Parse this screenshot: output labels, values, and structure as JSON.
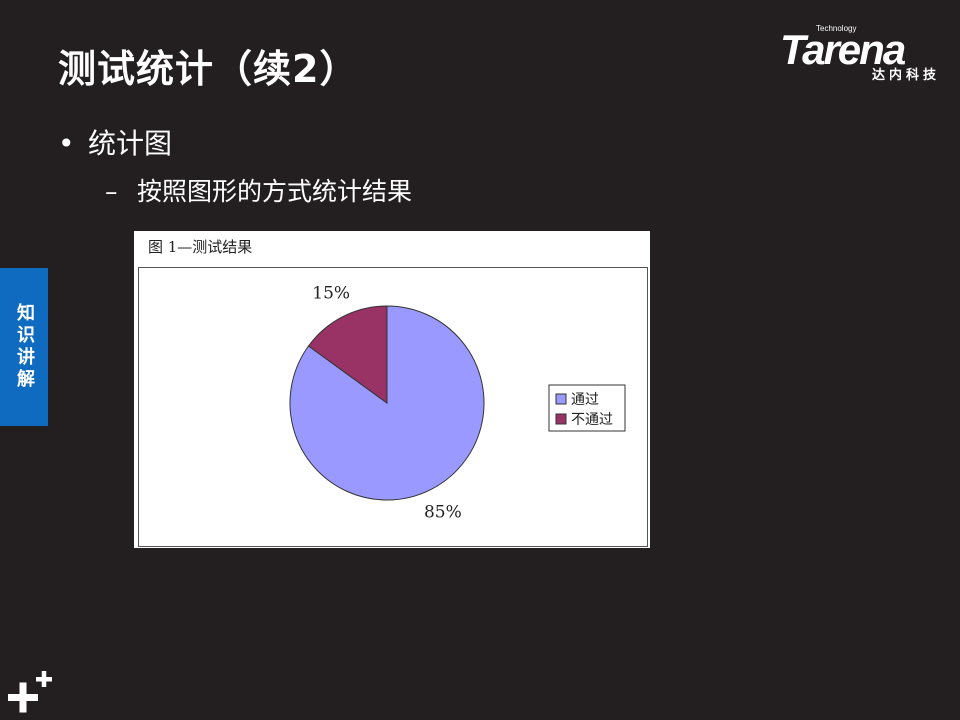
{
  "slide": {
    "title": "测试统计（续2）",
    "bullet_level1": "统计图",
    "bullet_level2": "按照图形的方式统计结果",
    "bullet_symbol": "•",
    "dash_symbol": "–",
    "side_tab": "知识讲解"
  },
  "logo": {
    "brand": "Tarena",
    "tagline": "Technology",
    "subtitle": "达内科技"
  },
  "figure": {
    "caption": "图 1—测试结果"
  },
  "chart_data": {
    "type": "pie",
    "title": "",
    "categories": [
      "通过",
      "不通过"
    ],
    "values": [
      85,
      15
    ],
    "labels": [
      "85%",
      "15%"
    ],
    "colors": [
      "#9999ff",
      "#993366"
    ],
    "legend_position": "right"
  }
}
